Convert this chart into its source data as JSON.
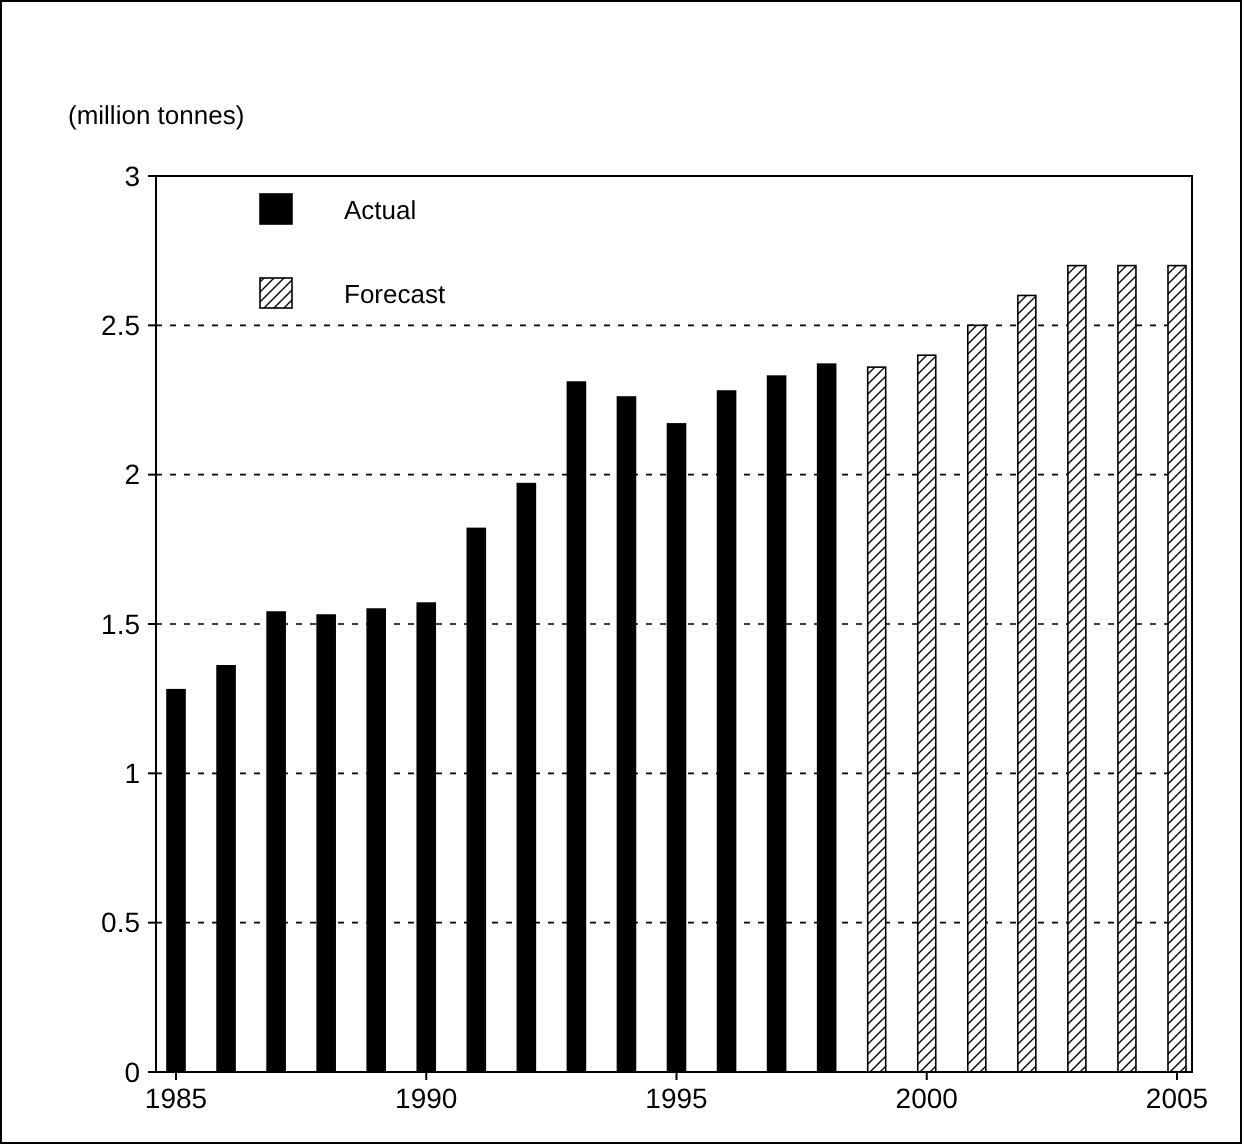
{
  "chart_data": {
    "type": "bar",
    "ylabel": "(million tonnes)",
    "series": [
      {
        "name": "Actual",
        "color": "#000000",
        "x": [
          1985,
          1986,
          1987,
          1988,
          1989,
          1990,
          1991,
          1992,
          1993,
          1994,
          1995,
          1996,
          1997,
          1998
        ],
        "values": [
          1.28,
          1.36,
          1.54,
          1.53,
          1.55,
          1.57,
          1.82,
          1.97,
          2.31,
          2.26,
          2.17,
          2.28,
          2.33,
          2.37
        ]
      },
      {
        "name": "Forecast",
        "color": "#000000",
        "x": [
          1999,
          2000,
          2001,
          2002,
          2003,
          2004,
          2005
        ],
        "values": [
          2.36,
          2.4,
          2.5,
          2.6,
          2.7,
          2.7,
          2.7
        ]
      }
    ],
    "xlim": [
      1984.6,
      2005.3
    ],
    "xticks": [
      1985,
      1990,
      1995,
      2000,
      2005
    ],
    "ylim": [
      0,
      3
    ],
    "yticks": [
      0,
      {
        "value": 0.5,
        "label": "0.5"
      },
      1,
      {
        "value": 1.5,
        "label": "1.5"
      },
      2,
      {
        "value": 2.5,
        "label": "2.5"
      },
      3
    ],
    "grid": "y",
    "legend": "top left"
  }
}
